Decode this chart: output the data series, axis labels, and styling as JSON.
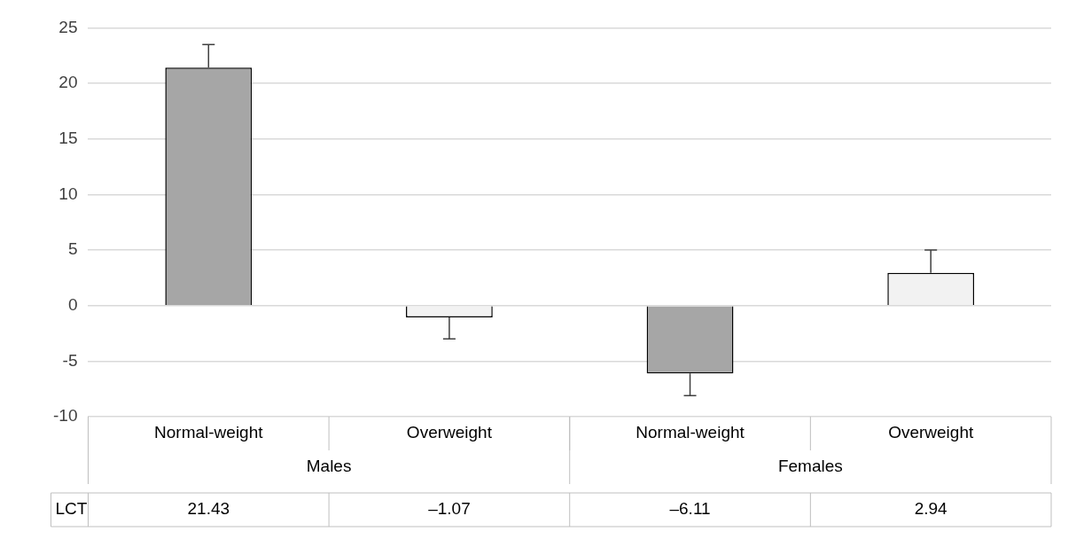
{
  "chart_data": {
    "type": "bar",
    "categories": [
      "Normal-weight",
      "Overweight",
      "Normal-weight",
      "Overweight"
    ],
    "series": [
      {
        "name": "LCT",
        "values": [
          21.43,
          -1.07,
          -6.11,
          2.94
        ],
        "colors": [
          "#a6a6a6",
          "#f2f2f2",
          "#a6a6a6",
          "#f2f2f2"
        ],
        "errors": [
          [
            21.43,
            23.5
          ],
          [
            -3,
            -1.07
          ],
          [
            -8.1,
            -6.11
          ],
          [
            2.94,
            5
          ]
        ],
        "value_labels": [
          "21.43",
          "–1.07",
          "–6.11",
          "2.94"
        ]
      }
    ],
    "annotations": [
      "Males",
      "Females"
    ],
    "ylim": [
      -10,
      25
    ],
    "yticks": [
      -10,
      -5,
      0,
      5,
      10,
      15,
      20,
      25
    ],
    "grid": "y",
    "legend": false
  }
}
